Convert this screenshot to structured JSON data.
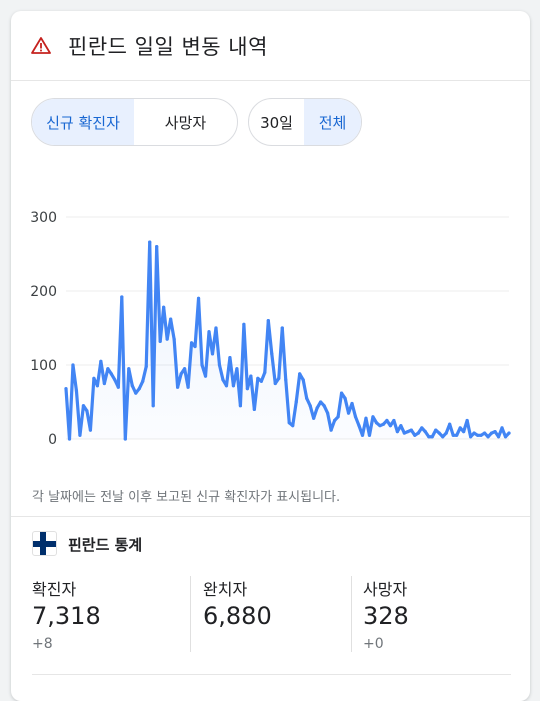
{
  "header": {
    "title": "핀란드 일일 변동 내역",
    "icon": "warning-triangle-icon",
    "icon_color": "#c5221f"
  },
  "filters": {
    "metric": [
      {
        "label": "신규 확진자",
        "active": true
      },
      {
        "label": "사망자",
        "active": false
      }
    ],
    "range": [
      {
        "label": "30일",
        "active": false
      },
      {
        "label": "전체",
        "active": true
      }
    ]
  },
  "chart_data": {
    "type": "line",
    "ylim": [
      0,
      300
    ],
    "yticks": [
      "0",
      "100",
      "200",
      "300"
    ],
    "grid": true,
    "color": "#4285f4",
    "values": [
      68,
      0,
      100,
      65,
      5,
      45,
      38,
      12,
      82,
      72,
      105,
      75,
      95,
      88,
      80,
      70,
      192,
      0,
      95,
      72,
      62,
      68,
      78,
      98,
      266,
      45,
      260,
      132,
      178,
      135,
      162,
      135,
      70,
      88,
      95,
      70,
      130,
      125,
      190,
      100,
      85,
      145,
      115,
      150,
      100,
      80,
      72,
      110,
      72,
      95,
      45,
      155,
      68,
      85,
      40,
      82,
      78,
      90,
      160,
      115,
      75,
      82,
      150,
      80,
      22,
      18,
      50,
      88,
      80,
      55,
      45,
      28,
      42,
      50,
      45,
      35,
      12,
      25,
      30,
      62,
      55,
      35,
      48,
      30,
      18,
      5,
      28,
      5,
      30,
      22,
      18,
      20,
      25,
      18,
      25,
      10,
      18,
      8,
      10,
      12,
      5,
      8,
      15,
      10,
      3,
      3,
      12,
      8,
      3,
      8,
      20,
      5,
      5,
      15,
      10,
      25,
      3,
      8,
      5,
      5,
      8,
      3,
      8,
      10,
      3,
      15,
      3,
      8
    ]
  },
  "footnote": "각 날짜에는 전날 이후 보고된 신규 확진자가 표시됩니다.",
  "stats": {
    "title": "핀란드 통계",
    "flag": "finland-flag-icon",
    "items": [
      {
        "label": "확진자",
        "value": "7,318",
        "delta": "+8"
      },
      {
        "label": "완치자",
        "value": "6,880",
        "delta": ""
      },
      {
        "label": "사망자",
        "value": "328",
        "delta": "+0"
      }
    ]
  }
}
